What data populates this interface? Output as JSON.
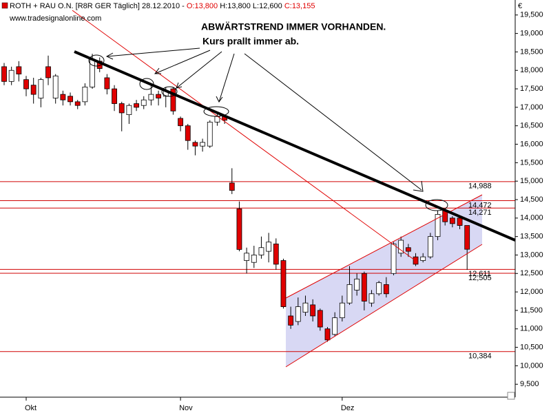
{
  "chart_data": {
    "type": "candlestick",
    "title": "ROTH + RAU O.N. [R8R GER  Täglich] 28.12.2010 -",
    "ohlc_labels": [
      "O:13,800",
      "H:13,800",
      "L:12,600",
      "C:13,155"
    ],
    "subtitle": "www.tradesignalonline.com",
    "currency": "€",
    "annotations": [
      "ABWÄRTSTREND IMMER VORHANDEN.",
      "Kurs prallt immer ab."
    ],
    "categories": [
      null,
      null,
      null,
      "Okt",
      null,
      null,
      null,
      null,
      null,
      null,
      null,
      null,
      null,
      null,
      null,
      null,
      null,
      null,
      null,
      null,
      null,
      null,
      null,
      null,
      "Nov",
      null,
      null,
      null,
      null,
      null,
      null,
      null,
      null,
      null,
      null,
      null,
      null,
      null,
      null,
      null,
      null,
      null,
      null,
      null,
      null,
      null,
      "Dez",
      null,
      null,
      null,
      null,
      null,
      null,
      null,
      null,
      null,
      null,
      null,
      null,
      null,
      null,
      null,
      null,
      null
    ],
    "open": [
      18.1,
      17.7,
      18.1,
      17.75,
      17.6,
      17.25,
      18.1,
      17.25,
      17.35,
      17.3,
      17.15,
      17.15,
      17.55,
      18.25,
      17.8,
      17.5,
      17.1,
      16.8,
      17.1,
      17.05,
      17.2,
      17.35,
      17.3,
      17.5,
      16.7,
      16.5,
      16.05,
      15.95,
      15.95,
      16.6,
      16.75,
      14.95,
      14.25,
      12.85,
      12.8,
      13.0,
      13.1,
      13.3,
      12.85,
      11.35,
      11.2,
      11.45,
      11.65,
      11.5,
      11.0,
      10.85,
      11.3,
      11.7,
      12.05,
      12.5,
      11.7,
      11.95,
      12.2,
      12.5,
      13.05,
      13.2,
      12.95,
      12.85,
      12.95,
      13.5,
      14.2,
      14.0,
      14.0,
      13.8
    ],
    "high": [
      18.2,
      18.1,
      18.25,
      17.85,
      17.8,
      17.8,
      18.4,
      17.9,
      17.45,
      17.4,
      17.2,
      17.65,
      18.45,
      18.35,
      17.9,
      17.6,
      17.15,
      17.1,
      17.2,
      17.3,
      17.6,
      17.45,
      17.55,
      17.55,
      16.75,
      16.55,
      16.1,
      16.15,
      16.65,
      16.85,
      16.8,
      15.35,
      14.45,
      13.2,
      13.25,
      13.5,
      13.6,
      13.45,
      12.9,
      11.6,
      11.85,
      11.9,
      11.8,
      11.55,
      11.05,
      11.45,
      11.9,
      12.7,
      12.5,
      12.55,
      12.05,
      12.3,
      12.4,
      13.35,
      13.5,
      13.3,
      13.05,
      13.05,
      13.6,
      14.2,
      14.25,
      14.05,
      14.05,
      13.8
    ],
    "low": [
      17.6,
      17.6,
      17.7,
      17.3,
      17.1,
      17.0,
      17.6,
      17.1,
      17.05,
      17.05,
      16.95,
      17.05,
      17.5,
      17.95,
      17.35,
      16.9,
      16.35,
      16.55,
      16.9,
      16.95,
      17.05,
      17.05,
      17.0,
      16.8,
      16.35,
      15.85,
      15.7,
      15.8,
      15.9,
      16.5,
      16.55,
      14.65,
      13.1,
      12.5,
      12.65,
      12.9,
      12.8,
      12.6,
      11.55,
      11.0,
      11.1,
      11.35,
      11.2,
      10.95,
      10.65,
      10.8,
      11.2,
      11.65,
      11.9,
      11.5,
      11.6,
      11.9,
      11.85,
      12.45,
      12.95,
      12.95,
      12.7,
      12.8,
      12.9,
      13.4,
      13.8,
      13.75,
      13.7,
      12.6
    ],
    "close": [
      17.7,
      18.0,
      17.9,
      17.5,
      17.35,
      17.75,
      17.8,
      17.85,
      17.2,
      17.15,
      17.05,
      17.55,
      18.3,
      18.05,
      17.5,
      17.1,
      16.85,
      17.05,
      17.0,
      17.2,
      17.35,
      17.25,
      17.45,
      16.9,
      16.5,
      16.1,
      15.95,
      16.05,
      16.6,
      16.75,
      16.65,
      14.75,
      13.15,
      13.05,
      13.0,
      13.2,
      13.35,
      12.75,
      11.6,
      11.1,
      11.6,
      11.7,
      11.35,
      11.05,
      10.7,
      11.3,
      11.7,
      12.2,
      12.35,
      11.75,
      11.95,
      12.25,
      11.95,
      13.3,
      13.4,
      13.1,
      12.75,
      12.95,
      13.5,
      14.1,
      13.9,
      13.85,
      13.8,
      13.155
    ],
    "up_color": "#ffffff",
    "down_color": "#e00000",
    "levels": [
      {
        "value": 14.988,
        "label": "14,988"
      },
      {
        "value": 14.472,
        "label": "14,472"
      },
      {
        "value": 14.271,
        "label": "14,271"
      },
      {
        "value": 12.611,
        "label": "12,611"
      },
      {
        "value": 12.505,
        "label": "12,505"
      },
      {
        "value": 10.384,
        "label": "10,384"
      }
    ],
    "level_color": "#d00000",
    "ylim": [
      9.15,
      19.85
    ],
    "yticks": [
      {
        "value": 9.5,
        "label": "9,500"
      },
      {
        "value": 10,
        "label": "10,000"
      },
      {
        "value": 10.5,
        "label": "10,500"
      },
      {
        "value": 11,
        "label": "11,000"
      },
      {
        "value": 11.5,
        "label": "11,500"
      },
      {
        "value": 12,
        "label": "12,000"
      },
      {
        "value": 12.5,
        "label": "12,500"
      },
      {
        "value": 13,
        "label": "13,000"
      },
      {
        "value": 13.5,
        "label": "13,500"
      },
      {
        "value": 14,
        "label": "14,000"
      },
      {
        "value": 14.5,
        "label": "14,500"
      },
      {
        "value": 15,
        "label": "15,000"
      },
      {
        "value": 15.5,
        "label": "15,500"
      },
      {
        "value": 16,
        "label": "16,000"
      },
      {
        "value": 16.5,
        "label": "16,500"
      },
      {
        "value": 17,
        "label": "17,000"
      },
      {
        "value": 17.5,
        "label": "17,500"
      },
      {
        "value": 18,
        "label": "18,000"
      },
      {
        "value": 18.5,
        "label": "18,500"
      },
      {
        "value": 19,
        "label": "19,000"
      },
      {
        "value": 19.5,
        "label": "19,500"
      }
    ]
  }
}
